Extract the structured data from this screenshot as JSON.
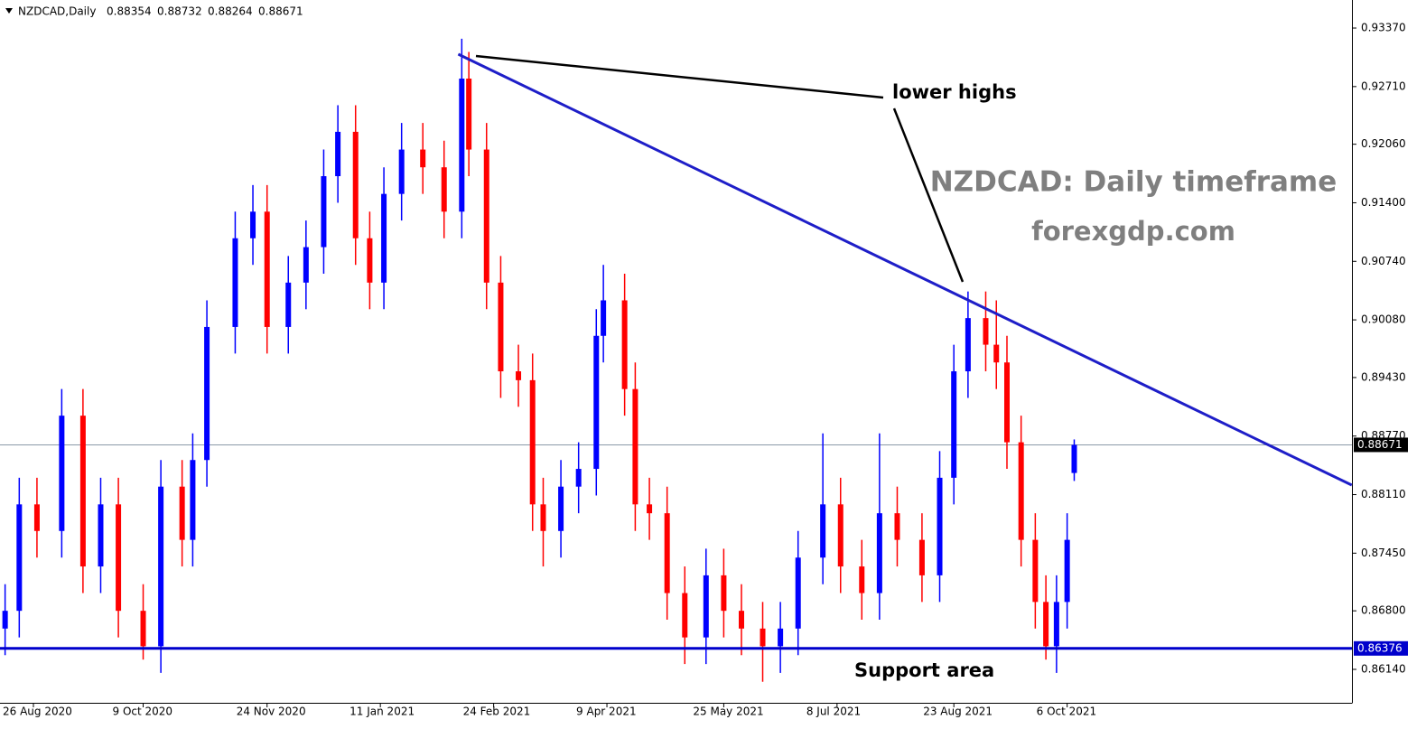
{
  "chart_data": {
    "type": "candlestick",
    "header": {
      "symbol": "NZDCAD,Daily",
      "ohlc": [
        0.88354,
        0.88732,
        0.88264,
        0.88671
      ]
    },
    "annotations": {
      "lower_highs": "lower highs",
      "support": "Support area",
      "watermark_title": "NZDCAD: Daily timeframe",
      "watermark_site": "forexgdp.com"
    },
    "up_color": "#0000ff",
    "down_color": "#ff0000",
    "candles": {
      "x": [
        -8,
        -4,
        1,
        8,
        14,
        19,
        24,
        31,
        36,
        42,
        45,
        49,
        57,
        62,
        66,
        72,
        77,
        82,
        86,
        91,
        95,
        99,
        104,
        110,
        116,
        121,
        123,
        128,
        132,
        137,
        141,
        144,
        149,
        154,
        159,
        161,
        167,
        170,
        174,
        179,
        184,
        190,
        195,
        200,
        206,
        211,
        216,
        223,
        228,
        234,
        239,
        244,
        251,
        256,
        260,
        264,
        269,
        272,
        275,
        279,
        283,
        286,
        289,
        292,
        294
      ],
      "open": [
        0.866,
        0.868,
        0.88,
        0.877,
        0.89,
        0.873,
        0.88,
        0.868,
        0.864,
        0.882,
        0.876,
        0.885,
        0.9,
        0.91,
        0.913,
        0.9,
        0.905,
        0.909,
        0.917,
        0.922,
        0.91,
        0.905,
        0.915,
        0.92,
        0.918,
        0.913,
        0.928,
        0.92,
        0.905,
        0.895,
        0.894,
        0.88,
        0.877,
        0.882,
        0.884,
        0.899,
        0.903,
        0.893,
        0.88,
        0.879,
        0.87,
        0.865,
        0.872,
        0.868,
        0.866,
        0.864,
        0.866,
        0.874,
        0.88,
        0.873,
        0.87,
        0.879,
        0.876,
        0.872,
        0.883,
        0.895,
        0.901,
        0.898,
        0.896,
        0.887,
        0.876,
        0.869,
        0.864,
        0.869,
        0.88354
      ],
      "high": [
        0.871,
        0.883,
        0.883,
        0.893,
        0.893,
        0.883,
        0.883,
        0.871,
        0.885,
        0.885,
        0.888,
        0.903,
        0.913,
        0.916,
        0.916,
        0.908,
        0.912,
        0.92,
        0.925,
        0.925,
        0.913,
        0.918,
        0.923,
        0.923,
        0.921,
        0.9325,
        0.931,
        0.923,
        0.908,
        0.898,
        0.897,
        0.883,
        0.885,
        0.887,
        0.902,
        0.907,
        0.906,
        0.896,
        0.883,
        0.882,
        0.873,
        0.875,
        0.875,
        0.871,
        0.869,
        0.869,
        0.877,
        0.888,
        0.883,
        0.876,
        0.888,
        0.882,
        0.879,
        0.886,
        0.898,
        0.904,
        0.904,
        0.903,
        0.899,
        0.89,
        0.879,
        0.872,
        0.872,
        0.879,
        0.88732
      ],
      "low": [
        0.863,
        0.865,
        0.874,
        0.874,
        0.87,
        0.87,
        0.865,
        0.8625,
        0.861,
        0.873,
        0.873,
        0.882,
        0.897,
        0.907,
        0.897,
        0.897,
        0.902,
        0.906,
        0.914,
        0.907,
        0.902,
        0.902,
        0.912,
        0.915,
        0.91,
        0.91,
        0.917,
        0.902,
        0.892,
        0.891,
        0.877,
        0.873,
        0.874,
        0.879,
        0.881,
        0.896,
        0.89,
        0.877,
        0.876,
        0.867,
        0.862,
        0.862,
        0.865,
        0.863,
        0.86,
        0.861,
        0.863,
        0.871,
        0.87,
        0.867,
        0.867,
        0.873,
        0.869,
        0.869,
        0.88,
        0.892,
        0.895,
        0.893,
        0.884,
        0.873,
        0.866,
        0.8625,
        0.861,
        0.866,
        0.88264
      ],
      "close": [
        0.868,
        0.88,
        0.877,
        0.89,
        0.873,
        0.88,
        0.868,
        0.864,
        0.882,
        0.876,
        0.885,
        0.9,
        0.91,
        0.913,
        0.9,
        0.905,
        0.909,
        0.917,
        0.922,
        0.91,
        0.905,
        0.915,
        0.92,
        0.918,
        0.913,
        0.928,
        0.92,
        0.905,
        0.895,
        0.894,
        0.88,
        0.877,
        0.882,
        0.884,
        0.899,
        0.903,
        0.893,
        0.88,
        0.879,
        0.87,
        0.865,
        0.872,
        0.868,
        0.866,
        0.864,
        0.866,
        0.874,
        0.88,
        0.873,
        0.87,
        0.879,
        0.876,
        0.872,
        0.883,
        0.895,
        0.901,
        0.898,
        0.896,
        0.887,
        0.876,
        0.869,
        0.864,
        0.869,
        0.876,
        0.88671
      ]
    },
    "trendline": {
      "color": "#1e1ec8",
      "x": [
        120,
        372.4
      ],
      "y": [
        0.93075,
        0.88217
      ]
    },
    "support_line": {
      "value": 0.86376,
      "color": "#0000cc"
    },
    "current_price": {
      "value": 0.88671,
      "color": "#8a9aa8"
    },
    "xlim": [
      -9.44,
      372.45
    ],
    "xticks": [
      {
        "value": 0,
        "label": "26 Aug 2020"
      },
      {
        "value": 31,
        "label": "9 Oct 2020"
      },
      {
        "value": 66,
        "label": "24 Nov 2020"
      },
      {
        "value": 98,
        "label": "11 Jan 2021"
      },
      {
        "value": 130,
        "label": "24 Feb 2021"
      },
      {
        "value": 162,
        "label": "9 Apr 2021"
      },
      {
        "value": 195,
        "label": "25 May 2021"
      },
      {
        "value": 227,
        "label": "8 Jul 2021"
      },
      {
        "value": 260,
        "label": "23 Aug 2021"
      },
      {
        "value": 292,
        "label": "6 Oct 2021"
      }
    ],
    "ylim": [
      0.85763,
      0.93686
    ],
    "yticks": [
      {
        "value": 0.9337,
        "label": "0.93370"
      },
      {
        "value": 0.9271,
        "label": "0.92710"
      },
      {
        "value": 0.9206,
        "label": "0.92060"
      },
      {
        "value": 0.914,
        "label": "0.91400"
      },
      {
        "value": 0.9074,
        "label": "0.90740"
      },
      {
        "value": 0.9008,
        "label": "0.90080"
      },
      {
        "value": 0.8943,
        "label": "0.89430"
      },
      {
        "value": 0.8877,
        "label": "0.88770"
      },
      {
        "value": 0.8811,
        "label": "0.88110"
      },
      {
        "value": 0.8745,
        "label": "0.87450"
      },
      {
        "value": 0.868,
        "label": "0.86800"
      },
      {
        "value": 0.8614,
        "label": "0.86140"
      }
    ]
  }
}
